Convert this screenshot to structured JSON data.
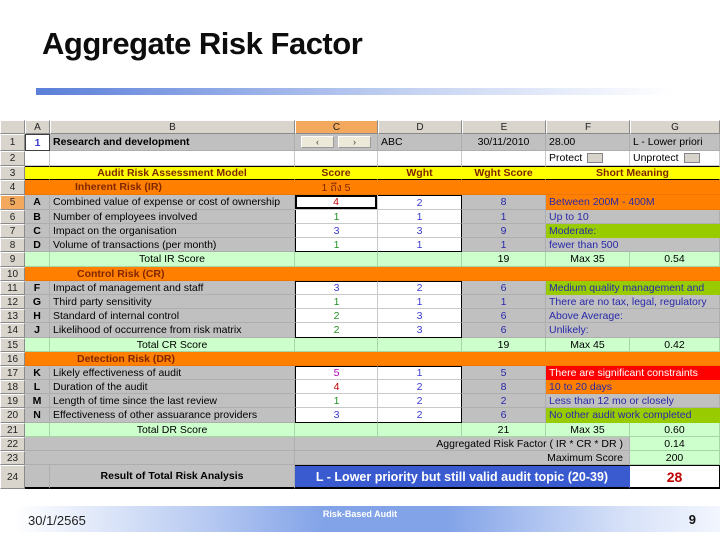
{
  "slide": {
    "title": "Aggregate Risk Factor",
    "footer": {
      "date": "30/1/2565",
      "center": "Risk-Based Audit",
      "page": "9"
    }
  },
  "colors": {
    "section_orange": "#ff8000",
    "header_yellow": "#ffff00",
    "total_green": "#ccffcc",
    "meaning_green": "#99cc00",
    "alert_red": "#ff0000",
    "result_blue": "#3a5bd0",
    "result_value_red": "#c00000",
    "cell_gray": "#c0c0c0",
    "selected_header_orange": "#f2a95e"
  },
  "spreadsheet": {
    "col_headers": [
      "A",
      "B",
      "C",
      "D",
      "E",
      "F",
      "G"
    ],
    "selected_column": "C",
    "selected_row": "5",
    "rows": [
      {
        "n": "1",
        "cells": [
          {
            "c": 1,
            "t": "1",
            "k": "wh ctr b tb a1"
          },
          {
            "c": 2,
            "t": "Research and development",
            "k": "gy b"
          },
          {
            "c": 3,
            "btns": [
              "‹",
              "›"
            ],
            "k": "gy ctr"
          },
          {
            "c": 4,
            "t": "ABC",
            "k": "gy"
          },
          {
            "c": 5,
            "t": "30/11/2010",
            "k": "gy ctr"
          },
          {
            "c": 6,
            "t": "28.00",
            "k": "gy"
          },
          {
            "c": 7,
            "t": "L - Lower priori",
            "k": "gy"
          }
        ]
      },
      {
        "n": "2",
        "cells": [
          {
            "c": 1,
            "t": "",
            "k": "wh"
          },
          {
            "c": 2,
            "t": "",
            "k": "wh"
          },
          {
            "c": 3,
            "t": "",
            "k": "wh"
          },
          {
            "c": 4,
            "t": "",
            "k": "wh"
          },
          {
            "c": 5,
            "t": "",
            "k": "wh"
          },
          {
            "c": 6,
            "t": "Protect",
            "k": "wh",
            "btn": true,
            "bn": "protect-button"
          },
          {
            "c": 7,
            "t": "Unprotect",
            "k": "wh",
            "btn": true,
            "bn": "unprotect-button"
          }
        ]
      },
      {
        "n": "3",
        "cells": [
          {
            "c": 1,
            "t": "",
            "k": "yl kt kb"
          },
          {
            "c": 2,
            "t": "Audit Risk Assessment Model",
            "k": "yl b tm ctr kt kb"
          },
          {
            "c": 3,
            "t": "Score",
            "k": "yl b tm ctr kt kb"
          },
          {
            "c": 4,
            "t": "Wght",
            "k": "yl b tm ctr kt kb"
          },
          {
            "c": 5,
            "t": "Wght Score",
            "k": "yl b tm ctr kt kb"
          },
          {
            "c": 6,
            "s": 2,
            "t": "Short Meaning",
            "k": "yl b tm ctr kt kb"
          }
        ]
      },
      {
        "n": "4",
        "cells": [
          {
            "c": 1,
            "t": "",
            "k": "or"
          },
          {
            "c": 2,
            "t": "Inherent Risk (IR)",
            "k": "or b tm ind"
          },
          {
            "c": 3,
            "t": "1 ถึง 5",
            "k": "or tm ctr"
          },
          {
            "c": 4,
            "s": 4,
            "t": "",
            "k": "or"
          }
        ]
      },
      {
        "n": "5",
        "hl": true,
        "cells": [
          {
            "c": 1,
            "t": "A",
            "k": "gy b ctr"
          },
          {
            "c": 2,
            "t": "Combined value of expense or cost of ownership",
            "k": "gy"
          },
          {
            "c": 3,
            "t": "4",
            "k": "wh ctr tr sel",
            "i": true
          },
          {
            "c": 4,
            "t": "2",
            "k": "wh ctr tb kt kr",
            "i": true
          },
          {
            "c": 5,
            "t": "8",
            "k": "gy ctr tn"
          },
          {
            "c": 6,
            "s": 2,
            "t": "Between 200M - 400M",
            "k": "or tn"
          }
        ]
      },
      {
        "n": "6",
        "cells": [
          {
            "c": 1,
            "t": "B",
            "k": "gy b ctr"
          },
          {
            "c": 2,
            "t": "Number of employees involved",
            "k": "gy"
          },
          {
            "c": 3,
            "t": "1",
            "k": "wh ctr tg kl",
            "i": true
          },
          {
            "c": 4,
            "t": "1",
            "k": "wh ctr tb kr",
            "i": true
          },
          {
            "c": 5,
            "t": "1",
            "k": "gy ctr tn"
          },
          {
            "c": 6,
            "s": 2,
            "t": "Up to 10",
            "k": "gy tn"
          }
        ]
      },
      {
        "n": "7",
        "cells": [
          {
            "c": 1,
            "t": "C",
            "k": "gy b ctr"
          },
          {
            "c": 2,
            "t": "Impact on the organisation",
            "k": "gy"
          },
          {
            "c": 3,
            "t": "3",
            "k": "wh ctr tb kl",
            "i": true
          },
          {
            "c": 4,
            "t": "3",
            "k": "wh ctr tb kr",
            "i": true
          },
          {
            "c": 5,
            "t": "9",
            "k": "gy ctr tn"
          },
          {
            "c": 6,
            "s": 2,
            "t": "Moderate:",
            "k": "gn tn"
          }
        ]
      },
      {
        "n": "8",
        "cells": [
          {
            "c": 1,
            "t": "D",
            "k": "gy b ctr"
          },
          {
            "c": 2,
            "t": "Volume of transactions (per month)",
            "k": "gy"
          },
          {
            "c": 3,
            "t": "1",
            "k": "wh ctr tg kl kb",
            "i": true
          },
          {
            "c": 4,
            "t": "1",
            "k": "wh ctr tb kr kb",
            "i": true
          },
          {
            "c": 5,
            "t": "1",
            "k": "gy ctr tn"
          },
          {
            "c": 6,
            "s": 2,
            "t": "fewer than 500",
            "k": "gy tn"
          }
        ]
      },
      {
        "n": "9",
        "cells": [
          {
            "c": 1,
            "t": "",
            "k": "lg"
          },
          {
            "c": 2,
            "t": "Total IR Score",
            "k": "lg ctr"
          },
          {
            "c": 3,
            "t": "",
            "k": "lg"
          },
          {
            "c": 4,
            "t": "",
            "k": "lg"
          },
          {
            "c": 5,
            "t": "19",
            "k": "lg ctr"
          },
          {
            "c": 6,
            "t": "Max  35",
            "k": "lg ctr"
          },
          {
            "c": 7,
            "t": "0.54",
            "k": "lg ctr"
          }
        ]
      },
      {
        "n": "10",
        "cells": [
          {
            "c": 1,
            "s": 7,
            "t": "Control Risk (CR)",
            "k": "or b tm ind2"
          }
        ]
      },
      {
        "n": "11",
        "cells": [
          {
            "c": 1,
            "t": "F",
            "k": "gy b ctr"
          },
          {
            "c": 2,
            "t": "Impact of management and staff",
            "k": "gy"
          },
          {
            "c": 3,
            "t": "3",
            "k": "wh ctr tb kl kt",
            "i": true
          },
          {
            "c": 4,
            "t": "2",
            "k": "wh ctr tb kr kt",
            "i": true
          },
          {
            "c": 5,
            "t": "6",
            "k": "gy ctr tn"
          },
          {
            "c": 6,
            "s": 2,
            "t": "Medium quality management and",
            "k": "gn tn"
          }
        ]
      },
      {
        "n": "12",
        "cells": [
          {
            "c": 1,
            "t": "G",
            "k": "gy b ctr"
          },
          {
            "c": 2,
            "t": "Third party sensitivity",
            "k": "gy"
          },
          {
            "c": 3,
            "t": "1",
            "k": "wh ctr tg kl",
            "i": true
          },
          {
            "c": 4,
            "t": "1",
            "k": "wh ctr tb kr",
            "i": true
          },
          {
            "c": 5,
            "t": "1",
            "k": "gy ctr tn"
          },
          {
            "c": 6,
            "s": 2,
            "t": "There are no tax, legal, regulatory",
            "k": "gy tn"
          }
        ]
      },
      {
        "n": "13",
        "cells": [
          {
            "c": 1,
            "t": "H",
            "k": "gy b ctr"
          },
          {
            "c": 2,
            "t": "Standard of internal control",
            "k": "gy"
          },
          {
            "c": 3,
            "t": "2",
            "k": "wh ctr tg kl",
            "i": true
          },
          {
            "c": 4,
            "t": "3",
            "k": "wh ctr tb kr",
            "i": true
          },
          {
            "c": 5,
            "t": "6",
            "k": "gy ctr tn"
          },
          {
            "c": 6,
            "s": 2,
            "t": "Above Average:",
            "k": "gy tn"
          }
        ]
      },
      {
        "n": "14",
        "cells": [
          {
            "c": 1,
            "t": "J",
            "k": "gy b ctr"
          },
          {
            "c": 2,
            "t": "Likelihood of occurrence from risk matrix",
            "k": "gy"
          },
          {
            "c": 3,
            "t": "2",
            "k": "wh ctr tg kl kb",
            "i": true
          },
          {
            "c": 4,
            "t": "3",
            "k": "wh ctr tb kr kb",
            "i": true
          },
          {
            "c": 5,
            "t": "6",
            "k": "gy ctr tn"
          },
          {
            "c": 6,
            "s": 2,
            "t": "Unlikely:",
            "k": "gy tn"
          }
        ]
      },
      {
        "n": "15",
        "cells": [
          {
            "c": 1,
            "t": "",
            "k": "lg"
          },
          {
            "c": 2,
            "t": "Total CR Score",
            "k": "lg ctr"
          },
          {
            "c": 3,
            "t": "",
            "k": "lg"
          },
          {
            "c": 4,
            "t": "",
            "k": "lg"
          },
          {
            "c": 5,
            "t": "19",
            "k": "lg ctr"
          },
          {
            "c": 6,
            "t": "Max  45",
            "k": "lg ctr"
          },
          {
            "c": 7,
            "t": "0.42",
            "k": "lg ctr"
          }
        ]
      },
      {
        "n": "16",
        "cells": [
          {
            "c": 1,
            "s": 7,
            "t": "Detection Risk (DR)",
            "k": "or b tm ind2"
          }
        ]
      },
      {
        "n": "17",
        "cells": [
          {
            "c": 1,
            "t": "K",
            "k": "gy b ctr"
          },
          {
            "c": 2,
            "t": "Likely effectiveness of audit",
            "k": "gy"
          },
          {
            "c": 3,
            "t": "5",
            "k": "wh ctr tp kl kt",
            "i": true
          },
          {
            "c": 4,
            "t": "1",
            "k": "wh ctr tb kr kt",
            "i": true
          },
          {
            "c": 5,
            "t": "5",
            "k": "gy ctr tn"
          },
          {
            "c": 6,
            "s": 2,
            "t": "There are significant constraints",
            "k": "rd tw"
          }
        ]
      },
      {
        "n": "18",
        "cells": [
          {
            "c": 1,
            "t": "L",
            "k": "gy b ctr"
          },
          {
            "c": 2,
            "t": "Duration of the audit",
            "k": "gy"
          },
          {
            "c": 3,
            "t": "4",
            "k": "wh ctr tr kl",
            "i": true
          },
          {
            "c": 4,
            "t": "2",
            "k": "wh ctr tb kr",
            "i": true
          },
          {
            "c": 5,
            "t": "8",
            "k": "gy ctr tn"
          },
          {
            "c": 6,
            "s": 2,
            "t": "10 to 20 days",
            "k": "or tn"
          }
        ]
      },
      {
        "n": "19",
        "cells": [
          {
            "c": 1,
            "t": "M",
            "k": "gy b ctr"
          },
          {
            "c": 2,
            "t": "Length of time since the last review",
            "k": "gy"
          },
          {
            "c": 3,
            "t": "1",
            "k": "wh ctr tg kl",
            "i": true
          },
          {
            "c": 4,
            "t": "2",
            "k": "wh ctr tb kr",
            "i": true
          },
          {
            "c": 5,
            "t": "2",
            "k": "gy ctr tn"
          },
          {
            "c": 6,
            "s": 2,
            "t": "Less than 12 mo or closely",
            "k": "gy tn"
          }
        ]
      },
      {
        "n": "20",
        "cells": [
          {
            "c": 1,
            "t": "N",
            "k": "gy b ctr"
          },
          {
            "c": 2,
            "t": "Effectiveness of other assuarance providers",
            "k": "gy"
          },
          {
            "c": 3,
            "t": "3",
            "k": "wh ctr tb kl kb",
            "i": true
          },
          {
            "c": 4,
            "t": "2",
            "k": "wh ctr tb kr kb",
            "i": true
          },
          {
            "c": 5,
            "t": "6",
            "k": "gy ctr tn"
          },
          {
            "c": 6,
            "s": 2,
            "t": "No other audit work completed",
            "k": "gn tn"
          }
        ]
      },
      {
        "n": "21",
        "cells": [
          {
            "c": 1,
            "t": "",
            "k": "lg"
          },
          {
            "c": 2,
            "t": "Total DR Score",
            "k": "lg ctr"
          },
          {
            "c": 3,
            "t": "",
            "k": "lg"
          },
          {
            "c": 4,
            "t": "",
            "k": "lg"
          },
          {
            "c": 5,
            "t": "21",
            "k": "lg ctr"
          },
          {
            "c": 6,
            "t": "Max  35",
            "k": "lg ctr"
          },
          {
            "c": 7,
            "t": "0.60",
            "k": "lg ctr"
          }
        ]
      },
      {
        "n": "22",
        "cells": [
          {
            "c": 1,
            "s": 2,
            "t": "",
            "k": "gy"
          },
          {
            "c": 3,
            "s": 4,
            "t": "Aggregated Risk Factor ( IR * CR * DR )",
            "k": "gy rt"
          },
          {
            "c": 7,
            "t": "0.14",
            "k": "lg ctr"
          }
        ]
      },
      {
        "n": "23",
        "cells": [
          {
            "c": 1,
            "s": 2,
            "t": "",
            "k": "gy"
          },
          {
            "c": 3,
            "s": 4,
            "t": "Maximum Score",
            "k": "gy rt"
          },
          {
            "c": 7,
            "t": "200",
            "k": "lg ctr"
          }
        ]
      },
      {
        "n": "24",
        "cells": [
          {
            "c": 1,
            "t": "",
            "k": "gy kb2"
          },
          {
            "c": 2,
            "t": "Result of Total Risk Analysis",
            "k": "gy b ctr kb2"
          },
          {
            "c": 3,
            "s": 4,
            "t": "L - Lower priority but still valid audit topic (20-39)",
            "k": "blz tw b ctr big kt kb2"
          },
          {
            "c": 7,
            "t": "28",
            "k": "wh tr b ctr big2 kt kr kb2"
          }
        ]
      }
    ]
  }
}
